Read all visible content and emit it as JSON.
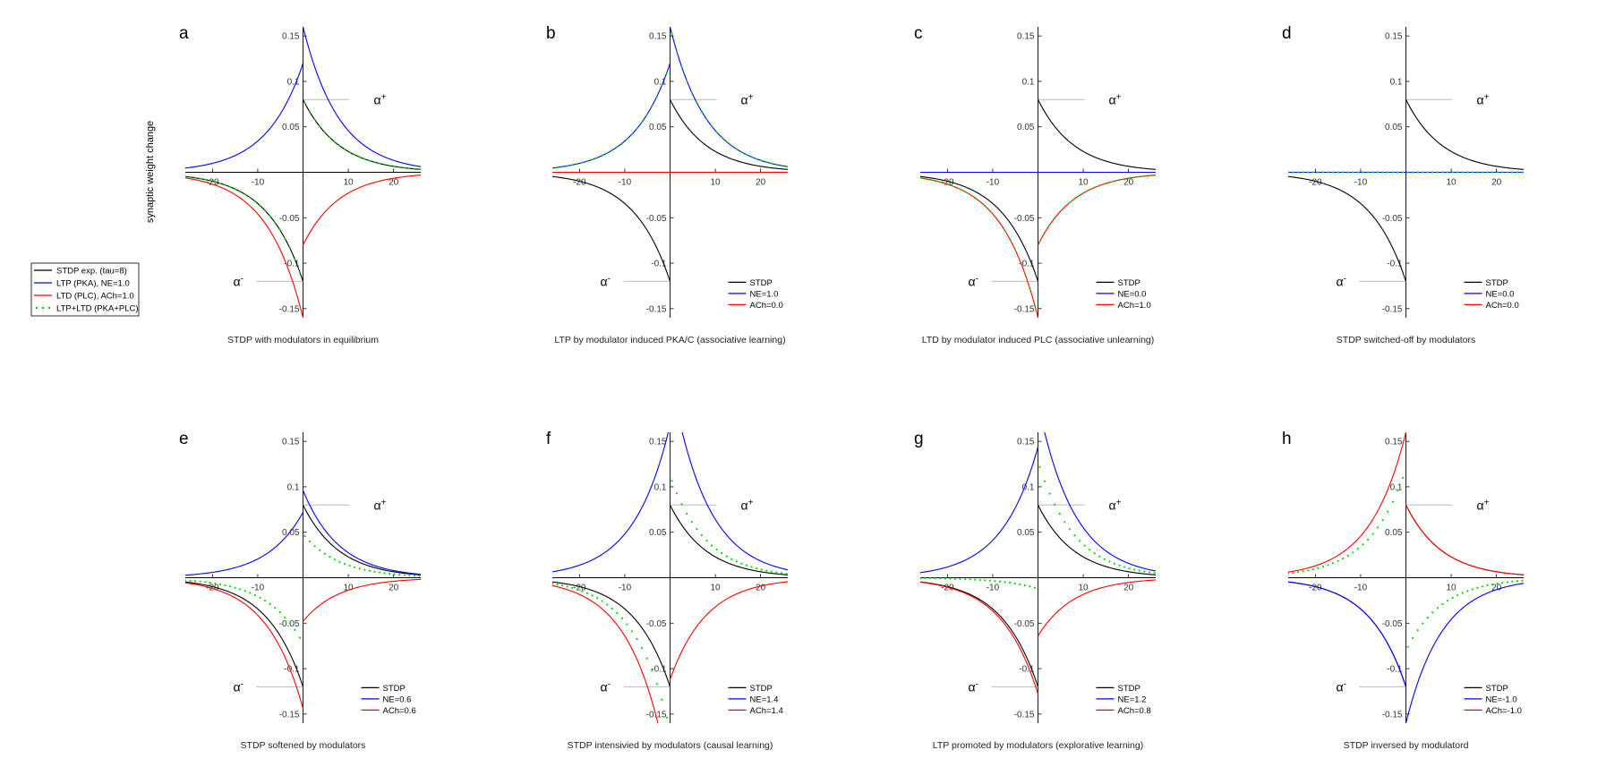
{
  "figure": {
    "ylabel": "synaptic weight change",
    "legend": {
      "placement": "left",
      "entries": [
        {
          "label": "STDP exp. (tau=8)",
          "color": "#000000",
          "style": "line"
        },
        {
          "label": "LTP (PKA), NE=1.0",
          "color": "#0000ff",
          "style": "line"
        },
        {
          "label": "LTD (PLC), ACh=1.0",
          "color": "#ff0000",
          "style": "line"
        },
        {
          "label": "LTP+LTD (PKA+PLC)",
          "color": "#00cc00",
          "style": "dots"
        }
      ]
    }
  },
  "chart_data": [
    {
      "type": "line",
      "letter": "a",
      "caption": "STDP with modulators in equilibrium",
      "alpha_plus": "α",
      "alpha_plus_sup": "+",
      "alpha_minus": "α",
      "alpha_minus_sup": "-",
      "xlim": [
        -26,
        26
      ],
      "ylim": [
        -0.16,
        0.16
      ],
      "xticks": [
        -20,
        -10,
        10,
        20
      ],
      "yticks": [
        0.15,
        0.1,
        0.05,
        -0.05,
        -0.1,
        -0.15
      ],
      "xtick_labels": [
        "-20",
        "-10",
        "10",
        "20"
      ],
      "ytick_labels": [
        "0.15",
        "0.1",
        "0.05",
        "-0.05",
        "-0.1",
        "-0.15"
      ],
      "tau": 8,
      "ne": 1.0,
      "ach": 1.0,
      "stdp_plus": 0.08,
      "stdp_minus": -0.12,
      "curves": {
        "ltp_pre": 0.12,
        "ltp_post": 0.16,
        "ltd_pre": -0.16,
        "ltd_post": -0.08,
        "sum_pre": -0.12,
        "sum_post": 0.08
      },
      "legend": []
    },
    {
      "type": "line",
      "letter": "b",
      "caption": "LTP by modulator induced PKA/C (associative learning)",
      "alpha_plus": "α",
      "alpha_plus_sup": "+",
      "alpha_minus": "α",
      "alpha_minus_sup": "-",
      "xlim": [
        -26,
        26
      ],
      "ylim": [
        -0.16,
        0.16
      ],
      "xticks": [
        -20,
        -10,
        10,
        20
      ],
      "yticks": [
        0.15,
        0.1,
        0.05,
        -0.05,
        -0.1,
        -0.15
      ],
      "xtick_labels": [
        "-20",
        "-10",
        "10",
        "20"
      ],
      "ytick_labels": [
        "0.15",
        "0.1",
        "0.05",
        "-0.05",
        "-0.1",
        "-0.15"
      ],
      "tau": 8,
      "ne": 1.0,
      "ach": 0.0,
      "stdp_plus": 0.08,
      "stdp_minus": -0.12,
      "curves": {
        "ltp_pre": 0.12,
        "ltp_post": 0.16,
        "ltd_pre": 0.0,
        "ltd_post": 0.0,
        "sum_pre": 0.12,
        "sum_post": 0.16
      },
      "legend": [
        {
          "label": "STDP",
          "color": "#000000"
        },
        {
          "label": "NE=1.0",
          "color": "#0000ff"
        },
        {
          "label": "ACh=0.0",
          "color": "#ff0000"
        }
      ]
    },
    {
      "type": "line",
      "letter": "c",
      "caption": "LTD by modulator induced PLC (associative unlearning)",
      "alpha_plus": "α",
      "alpha_plus_sup": "+",
      "alpha_minus": "α",
      "alpha_minus_sup": "-",
      "xlim": [
        -26,
        26
      ],
      "ylim": [
        -0.16,
        0.16
      ],
      "xticks": [
        -20,
        -10,
        10,
        20
      ],
      "yticks": [
        0.15,
        0.1,
        0.05,
        -0.05,
        -0.1,
        -0.15
      ],
      "xtick_labels": [
        "-20",
        "-10",
        "10",
        "20"
      ],
      "ytick_labels": [
        "0.15",
        "0.1",
        "0.05",
        "-0.05",
        "-0.1",
        "-0.15"
      ],
      "tau": 8,
      "ne": 0.0,
      "ach": 1.0,
      "stdp_plus": 0.08,
      "stdp_minus": -0.12,
      "curves": {
        "ltp_pre": 0.0,
        "ltp_post": 0.0,
        "ltd_pre": -0.16,
        "ltd_post": -0.08,
        "sum_pre": -0.16,
        "sum_post": -0.08
      },
      "legend": [
        {
          "label": "STDP",
          "color": "#000000"
        },
        {
          "label": "NE=0.0",
          "color": "#0000ff"
        },
        {
          "label": "ACh=1.0",
          "color": "#ff0000"
        }
      ]
    },
    {
      "type": "line",
      "letter": "d",
      "caption": "STDP switched-off by modulators",
      "alpha_plus": "α",
      "alpha_plus_sup": "+",
      "alpha_minus": "α",
      "alpha_minus_sup": "-",
      "xlim": [
        -26,
        26
      ],
      "ylim": [
        -0.16,
        0.16
      ],
      "xticks": [
        -20,
        -10,
        10,
        20
      ],
      "yticks": [
        0.15,
        0.1,
        0.05,
        -0.05,
        -0.1,
        -0.15
      ],
      "xtick_labels": [
        "-20",
        "-10",
        "10",
        "20"
      ],
      "ytick_labels": [
        "0.15",
        "0.1",
        "0.05",
        "-0.05",
        "-0.1",
        "-0.15"
      ],
      "tau": 8,
      "ne": 0.0,
      "ach": 0.0,
      "stdp_plus": 0.08,
      "stdp_minus": -0.12,
      "curves": {
        "ltp_pre": 0.0,
        "ltp_post": 0.0,
        "ltd_pre": 0.0,
        "ltd_post": 0.0,
        "sum_pre": 0.0,
        "sum_post": 0.0
      },
      "legend": [
        {
          "label": "STDP",
          "color": "#000000"
        },
        {
          "label": "NE=0.0",
          "color": "#0000ff"
        },
        {
          "label": "ACh=0.0",
          "color": "#ff0000"
        }
      ]
    },
    {
      "type": "line",
      "letter": "e",
      "caption": "STDP softened by modulators",
      "alpha_plus": "α",
      "alpha_plus_sup": "+",
      "alpha_minus": "α",
      "alpha_minus_sup": "-",
      "xlim": [
        -26,
        26
      ],
      "ylim": [
        -0.16,
        0.16
      ],
      "xticks": [
        -20,
        -10,
        10,
        20
      ],
      "yticks": [
        0.15,
        0.1,
        0.05,
        -0.05,
        -0.1,
        -0.15
      ],
      "xtick_labels": [
        "-20",
        "-10",
        "10",
        "20"
      ],
      "ytick_labels": [
        "0.15",
        "0.1",
        "0.05",
        "-0.05",
        "-0.1",
        "-0.15"
      ],
      "tau": 8,
      "ne": 0.6,
      "ach": 0.6,
      "stdp_plus": 0.08,
      "stdp_minus": -0.12,
      "curves": {
        "ltp_pre": 0.072,
        "ltp_post": 0.096,
        "ltd_pre": -0.144,
        "ltd_post": -0.048,
        "sum_pre": -0.072,
        "sum_post": 0.048
      },
      "legend": [
        {
          "label": "STDP",
          "color": "#000000"
        },
        {
          "label": "NE=0.6",
          "color": "#0000ff"
        },
        {
          "label": "ACh=0.6",
          "color": "#ff0000"
        }
      ]
    },
    {
      "type": "line",
      "letter": "f",
      "caption": "STDP intensivied by modulators (causal learning)",
      "alpha_plus": "α",
      "alpha_plus_sup": "+",
      "alpha_minus": "α",
      "alpha_minus_sup": "-",
      "xlim": [
        -26,
        26
      ],
      "ylim": [
        -0.16,
        0.16
      ],
      "xticks": [
        -20,
        -10,
        10,
        20
      ],
      "yticks": [
        0.15,
        0.1,
        0.05,
        -0.05,
        -0.1,
        -0.15
      ],
      "xtick_labels": [
        "-20",
        "-10",
        "10",
        "20"
      ],
      "ytick_labels": [
        "0.15",
        "0.1",
        "0.05",
        "-0.05",
        "-0.1",
        "-0.15"
      ],
      "tau": 8,
      "ne": 1.4,
      "ach": 1.4,
      "stdp_plus": 0.08,
      "stdp_minus": -0.12,
      "curves": {
        "ltp_pre": 0.168,
        "ltp_post": 0.224,
        "ltd_pre": -0.224,
        "ltd_post": -0.112,
        "sum_pre": -0.168,
        "sum_post": 0.112
      },
      "legend": [
        {
          "label": "STDP",
          "color": "#000000"
        },
        {
          "label": "NE=1.4",
          "color": "#0000ff"
        },
        {
          "label": "ACh=1.4",
          "color": "#ff0000"
        }
      ]
    },
    {
      "type": "line",
      "letter": "g",
      "caption": "LTP promoted by modulators (explorative learning)",
      "alpha_plus": "α",
      "alpha_plus_sup": "+",
      "alpha_minus": "α",
      "alpha_minus_sup": "-",
      "xlim": [
        -26,
        26
      ],
      "ylim": [
        -0.16,
        0.16
      ],
      "xticks": [
        -20,
        -10,
        10,
        20
      ],
      "yticks": [
        0.15,
        0.1,
        0.05,
        -0.05,
        -0.1,
        -0.15
      ],
      "xtick_labels": [
        "-20",
        "-10",
        "10",
        "20"
      ],
      "ytick_labels": [
        "0.15",
        "0.1",
        "0.05",
        "-0.05",
        "-0.1",
        "-0.15"
      ],
      "tau": 8,
      "ne": 1.2,
      "ach": 0.8,
      "stdp_plus": 0.08,
      "stdp_minus": -0.12,
      "curves": {
        "ltp_pre": 0.144,
        "ltp_post": 0.192,
        "ltd_pre": -0.128,
        "ltd_post": -0.064,
        "sum_pre": -0.012,
        "sum_post": 0.128
      },
      "legend": [
        {
          "label": "STDP",
          "color": "#000000"
        },
        {
          "label": "NE=1.2",
          "color": "#0000ff"
        },
        {
          "label": "ACh=0.8",
          "color": "#ff0000"
        }
      ]
    },
    {
      "type": "line",
      "letter": "h",
      "caption": "STDP inversed by modulatord",
      "alpha_plus": "α",
      "alpha_plus_sup": "+",
      "alpha_minus": "α",
      "alpha_minus_sup": "-",
      "xlim": [
        -26,
        26
      ],
      "ylim": [
        -0.16,
        0.16
      ],
      "xticks": [
        -20,
        -10,
        10,
        20
      ],
      "yticks": [
        0.15,
        0.1,
        0.05,
        -0.05,
        -0.1,
        -0.15
      ],
      "xtick_labels": [
        "-20",
        "-10",
        "10",
        "20"
      ],
      "ytick_labels": [
        "0.15",
        "0.1",
        "0.05",
        "-0.05",
        "-0.1",
        "-0.15"
      ],
      "tau": 8,
      "ne": -1.0,
      "ach": -1.0,
      "stdp_plus": 0.08,
      "stdp_minus": -0.12,
      "curves": {
        "ltp_pre": -0.12,
        "ltp_post": -0.16,
        "ltd_pre": 0.16,
        "ltd_post": 0.08,
        "sum_pre": 0.12,
        "sum_post": -0.08
      },
      "legend": [
        {
          "label": "STDP",
          "color": "#000000"
        },
        {
          "label": "NE=-1.0",
          "color": "#0000ff"
        },
        {
          "label": "ACh=-1.0",
          "color": "#ff0000"
        }
      ]
    }
  ]
}
